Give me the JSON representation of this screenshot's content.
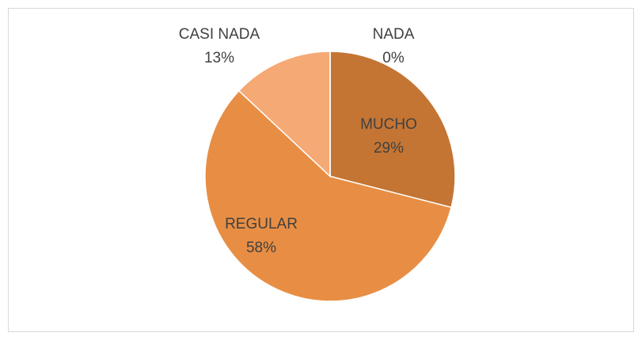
{
  "chart_data": {
    "type": "pie",
    "categories": [
      "MUCHO",
      "REGULAR",
      "CASI NADA",
      "NADA"
    ],
    "values": [
      29,
      58,
      13,
      0
    ],
    "value_labels": [
      "29%",
      "58%",
      "13%",
      "0%"
    ],
    "colors": [
      "#C47533",
      "#E88E44",
      "#F5A975",
      "#F8C8A4"
    ]
  }
}
